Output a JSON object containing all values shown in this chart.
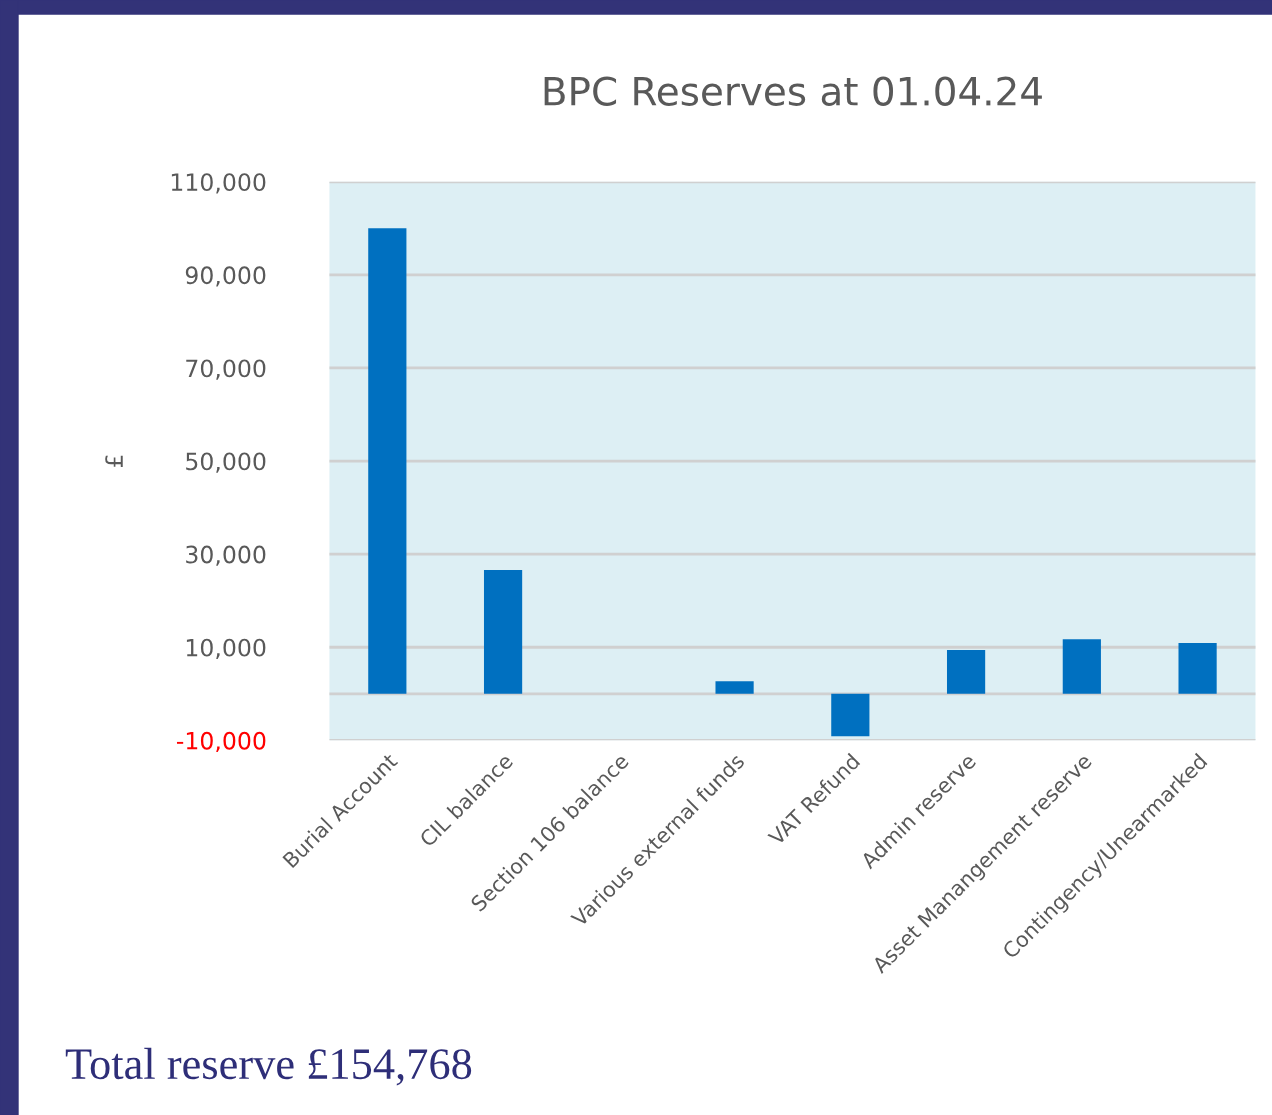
{
  "chart_data": {
    "type": "bar",
    "title": "BPC Reserves at 01.04.24",
    "ylabel": "£",
    "categories": [
      "Burial Account",
      "CIL balance",
      "Section 106 balance",
      "Various external funds",
      "VAT Refund",
      "Admin reserve",
      "Asset Manangement reserve",
      "Contingency/Unearmarked"
    ],
    "values": [
      100000,
      26600,
      0,
      2700,
      -9100,
      9400,
      11700,
      10900
    ],
    "color": "#0070c0",
    "ylim": [
      -10000,
      110000
    ],
    "yticks": [
      {
        "value": -10000,
        "label": "-10,000"
      },
      {
        "value": 10000,
        "label": "10,000"
      },
      {
        "value": 30000,
        "label": "30,000"
      },
      {
        "value": 50000,
        "label": "50,000"
      },
      {
        "value": 70000,
        "label": "70,000"
      },
      {
        "value": 90000,
        "label": "90,000"
      },
      {
        "value": 110000,
        "label": "110,000"
      }
    ],
    "grid": "y",
    "annotations": [
      "Total reserve £154,768"
    ]
  }
}
